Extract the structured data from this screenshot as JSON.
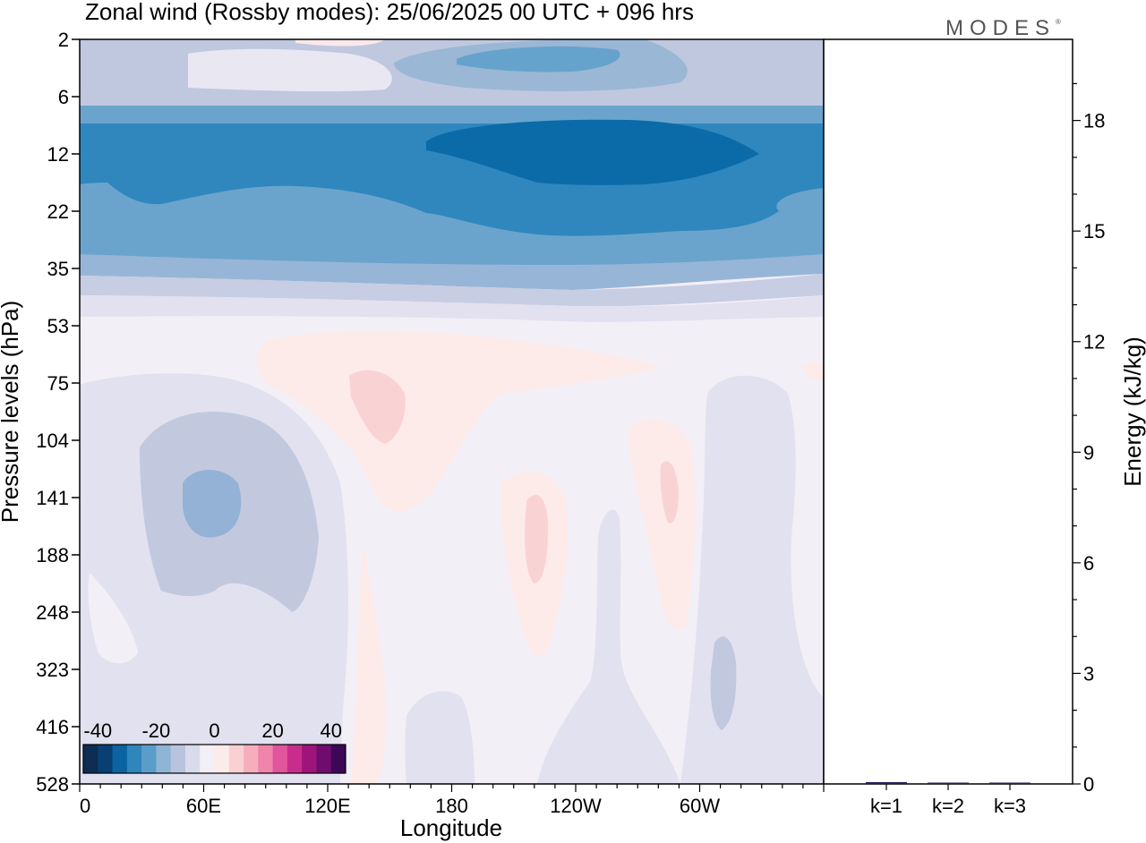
{
  "title": "Zonal wind (Rossby modes):  25/06/2025  00 UTC  + 096 hrs",
  "brand": "MODES",
  "brand_mark": "®",
  "chart_data": [
    {
      "type": "heatmap",
      "xlabel": "Longitude",
      "ylabel": "Pressure levels (hPa)",
      "x_ticks": [
        "0",
        "60E",
        "120E",
        "180",
        "120W",
        "60W"
      ],
      "y_ticks": [
        "2",
        "6",
        "12",
        "22",
        "35",
        "53",
        "75",
        "104",
        "141",
        "188",
        "248",
        "323",
        "416",
        "528"
      ],
      "y_axis_inverted": true,
      "colorbar": {
        "labels": [
          "-40",
          "-20",
          "0",
          "20",
          "40"
        ],
        "range": [
          -45,
          45
        ],
        "step": 5,
        "colors": [
          "#0d2d52",
          "#093f73",
          "#0b63a2",
          "#2e86bd",
          "#5b9dc9",
          "#8eb4d6",
          "#b9c3dd",
          "#d9dbeb",
          "#f3eff7",
          "#fdeaea",
          "#fbd0d2",
          "#f6aebd",
          "#ef85aa",
          "#e0559b",
          "#c82d8c",
          "#9e147b",
          "#6f0d6e",
          "#3d0757"
        ],
        "placement": "bottom-left"
      },
      "fields": [
        {
          "name": "upper-stratosphere easterly band",
          "pressure_hPa": [
            9,
            28
          ],
          "value": -30
        },
        {
          "name": "upper easterly core",
          "pressure_hPa": [
            11,
            16
          ],
          "longitude_deg": [
            155,
            235
          ],
          "value": -40
        },
        {
          "name": "middle easterly layers",
          "pressure_hPa": [
            28,
            45
          ],
          "value": -15
        },
        {
          "name": "topmost mixed layer",
          "pressure_hPa": [
            2,
            8
          ],
          "value": -10
        },
        {
          "name": "high easterly patch",
          "pressure_hPa": [
            2,
            5
          ],
          "longitude_deg": [
            180,
            260
          ],
          "value": -25
        },
        {
          "name": "troposphere background",
          "pressure_hPa": [
            53,
            528
          ],
          "value": 0
        },
        {
          "name": "negative anomaly near 60E",
          "pressure_hPa": [
            104,
            188
          ],
          "longitude_deg": [
            45,
            80
          ],
          "value": -15
        },
        {
          "name": "positive anomaly near 140E",
          "pressure_hPa": [
            70,
            110
          ],
          "longitude_deg": [
            135,
            155
          ],
          "value": 10
        },
        {
          "name": "positive anomaly near 105W",
          "pressure_hPa": [
            130,
            230
          ],
          "longitude_deg": [
            250,
            260
          ],
          "value": 10
        },
        {
          "name": "positive anomaly near 70W",
          "pressure_hPa": [
            130,
            180
          ],
          "longitude_deg": [
            280,
            290
          ],
          "value": 10
        },
        {
          "name": "negative anomaly near 35W",
          "pressure_hPa": [
            300,
            420
          ],
          "longitude_deg": [
            320,
            330
          ],
          "value": -15
        }
      ]
    },
    {
      "type": "bar",
      "categories": [
        "k=1",
        "k=2",
        "k=3"
      ],
      "values": [
        0.05,
        0.02,
        0.02
      ],
      "ylabel": "Energy (kJ/kg)",
      "ylim": [
        0,
        20.2
      ],
      "y_ticks": [
        0,
        3,
        6,
        9,
        12,
        15,
        18
      ],
      "colors": [
        "#23205c",
        "#23205c",
        "#23205c"
      ]
    }
  ]
}
